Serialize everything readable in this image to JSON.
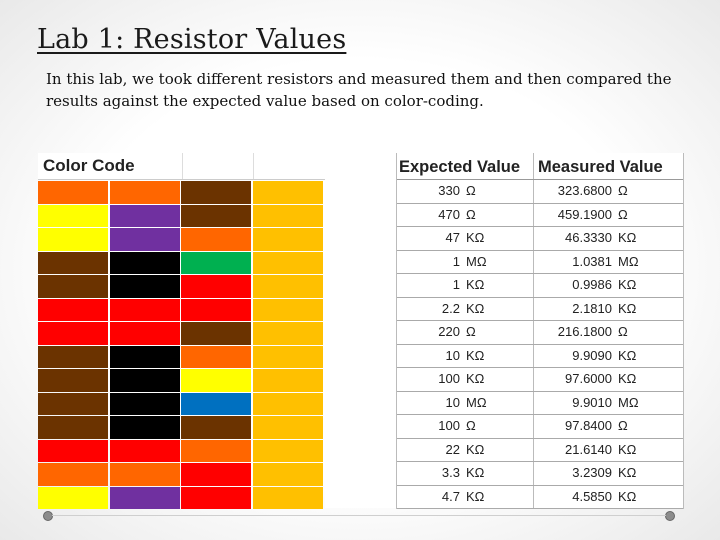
{
  "slide": {
    "title": "Lab 1: Resistor Values",
    "intro": "In this lab, we took different resistors and measured them and then compared the results against the expected value based on color-coding."
  },
  "color_table": {
    "header": "Color Code",
    "colors": {
      "brown": "#6b3300",
      "black": "#000000",
      "red": "#ff0000",
      "orange": "#ff6600",
      "yellow": "#ffff00",
      "green": "#00b050",
      "blue": "#0070c0",
      "violet": "#7030a0",
      "gold": "#ffc000"
    },
    "rows": [
      [
        "orange",
        "orange",
        "brown",
        "gold"
      ],
      [
        "yellow",
        "violet",
        "brown",
        "gold"
      ],
      [
        "yellow",
        "violet",
        "orange",
        "gold"
      ],
      [
        "brown",
        "black",
        "green",
        "gold"
      ],
      [
        "brown",
        "black",
        "red",
        "gold"
      ],
      [
        "red",
        "red",
        "red",
        "gold"
      ],
      [
        "red",
        "red",
        "brown",
        "gold"
      ],
      [
        "brown",
        "black",
        "orange",
        "gold"
      ],
      [
        "brown",
        "black",
        "yellow",
        "gold"
      ],
      [
        "brown",
        "black",
        "blue",
        "gold"
      ],
      [
        "brown",
        "black",
        "brown",
        "gold"
      ],
      [
        "red",
        "red",
        "orange",
        "gold"
      ],
      [
        "orange",
        "orange",
        "red",
        "gold"
      ],
      [
        "yellow",
        "violet",
        "red",
        "gold"
      ]
    ]
  },
  "values_table": {
    "headers": [
      "Expected Value",
      "Measured Value"
    ],
    "rows": [
      {
        "exp": "330",
        "exp_unit": "Ω",
        "meas": "323.6800",
        "meas_unit": "Ω"
      },
      {
        "exp": "470",
        "exp_unit": "Ω",
        "meas": "459.1900",
        "meas_unit": "Ω"
      },
      {
        "exp": "47",
        "exp_unit": "KΩ",
        "meas": "46.3330",
        "meas_unit": "KΩ"
      },
      {
        "exp": "1",
        "exp_unit": "MΩ",
        "meas": "1.0381",
        "meas_unit": "MΩ"
      },
      {
        "exp": "1",
        "exp_unit": "KΩ",
        "meas": "0.9986",
        "meas_unit": "KΩ"
      },
      {
        "exp": "2.2",
        "exp_unit": "KΩ",
        "meas": "2.1810",
        "meas_unit": "KΩ"
      },
      {
        "exp": "220",
        "exp_unit": "Ω",
        "meas": "216.1800",
        "meas_unit": "Ω"
      },
      {
        "exp": "10",
        "exp_unit": "KΩ",
        "meas": "9.9090",
        "meas_unit": "KΩ"
      },
      {
        "exp": "100",
        "exp_unit": "KΩ",
        "meas": "97.6000",
        "meas_unit": "KΩ"
      },
      {
        "exp": "10",
        "exp_unit": "MΩ",
        "meas": "9.9010",
        "meas_unit": "MΩ"
      },
      {
        "exp": "100",
        "exp_unit": "Ω",
        "meas": "97.8400",
        "meas_unit": "Ω"
      },
      {
        "exp": "22",
        "exp_unit": "KΩ",
        "meas": "21.6140",
        "meas_unit": "KΩ"
      },
      {
        "exp": "3.3",
        "exp_unit": "KΩ",
        "meas": "3.2309",
        "meas_unit": "KΩ"
      },
      {
        "exp": "4.7",
        "exp_unit": "KΩ",
        "meas": "4.5850",
        "meas_unit": "KΩ"
      }
    ]
  }
}
